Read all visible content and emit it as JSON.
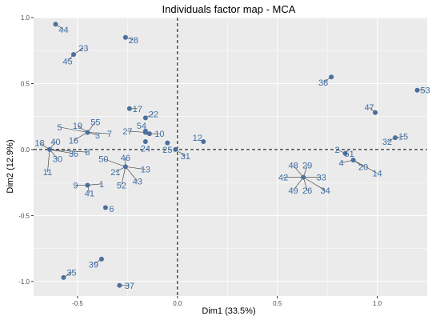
{
  "chart_data": {
    "type": "scatter",
    "title": "Individuals factor map - MCA",
    "xlabel": "Dim1 (33.5%)",
    "ylabel": "Dim2 (12.9%)",
    "xlim": [
      -0.72,
      1.25
    ],
    "ylim": [
      -1.11,
      1.0
    ],
    "x_ticks": [
      -0.5,
      0.0,
      0.5,
      1.0
    ],
    "x_tick_labels": [
      "-0.5",
      "0.0",
      "0.5",
      "1.0"
    ],
    "y_ticks": [
      -1.0,
      -0.5,
      0.0,
      0.5,
      1.0
    ],
    "y_tick_labels": [
      "-1.0",
      "-0.5",
      "0.0",
      "0.5",
      "1.0"
    ],
    "grid": true,
    "reference_lines": {
      "x": 0,
      "y": 0,
      "style": "dashed"
    },
    "point_color": "#4b6f9b",
    "label_color": "#3f6fa6",
    "leader_color": "#333333",
    "points": [
      {
        "x": -0.61,
        "y": 0.95,
        "label": "44",
        "lx": -0.57,
        "ly": 0.91
      },
      {
        "x": -0.26,
        "y": 0.85,
        "label": "28",
        "lx": -0.22,
        "ly": 0.83
      },
      {
        "x": -0.52,
        "y": 0.72,
        "label": "23",
        "lx": -0.47,
        "ly": 0.77
      },
      {
        "x": -0.52,
        "y": 0.72,
        "label": "45",
        "lx": -0.55,
        "ly": 0.67
      },
      {
        "x": 0.77,
        "y": 0.55,
        "label": "38",
        "lx": 0.73,
        "ly": 0.51
      },
      {
        "x": 1.2,
        "y": 0.45,
        "label": "53",
        "lx": 1.24,
        "ly": 0.45
      },
      {
        "x": 0.99,
        "y": 0.28,
        "label": "47",
        "lx": 0.96,
        "ly": 0.32
      },
      {
        "x": -0.24,
        "y": 0.31,
        "label": "17",
        "lx": -0.2,
        "ly": 0.31
      },
      {
        "x": -0.16,
        "y": 0.24,
        "label": "22",
        "lx": -0.12,
        "ly": 0.27
      },
      {
        "x": 1.09,
        "y": 0.09,
        "label": "15",
        "lx": 1.13,
        "ly": 0.1
      },
      {
        "x": 1.09,
        "y": 0.09,
        "label": "32",
        "lx": 1.05,
        "ly": 0.06
      },
      {
        "x": -0.16,
        "y": 0.14,
        "label": "54",
        "lx": -0.18,
        "ly": 0.18
      },
      {
        "x": -0.16,
        "y": 0.13,
        "label": "27",
        "lx": -0.25,
        "ly": 0.14
      },
      {
        "x": -0.14,
        "y": 0.12,
        "label": "10",
        "lx": -0.09,
        "ly": 0.12
      },
      {
        "x": 0.13,
        "y": 0.06,
        "label": "12",
        "lx": 0.1,
        "ly": 0.09
      },
      {
        "x": -0.16,
        "y": 0.06,
        "label": "24",
        "lx": -0.16,
        "ly": 0.01
      },
      {
        "x": -0.05,
        "y": 0.05,
        "label": "25",
        "lx": -0.05,
        "ly": 0.0
      },
      {
        "x": -0.01,
        "y": 0.0,
        "label": "31",
        "lx": 0.04,
        "ly": -0.05
      },
      {
        "x": -0.45,
        "y": 0.13,
        "label": "55",
        "lx": -0.41,
        "ly": 0.21
      },
      {
        "x": -0.45,
        "y": 0.13,
        "label": "19",
        "lx": -0.5,
        "ly": 0.18
      },
      {
        "x": -0.45,
        "y": 0.13,
        "label": "5",
        "lx": -0.59,
        "ly": 0.17
      },
      {
        "x": -0.45,
        "y": 0.13,
        "label": "3",
        "lx": -0.4,
        "ly": 0.11
      },
      {
        "x": -0.45,
        "y": 0.13,
        "label": "7",
        "lx": -0.34,
        "ly": 0.12
      },
      {
        "x": -0.45,
        "y": 0.13,
        "label": "16",
        "lx": -0.52,
        "ly": 0.07
      },
      {
        "x": -0.64,
        "y": 0.0,
        "label": "18",
        "lx": -0.69,
        "ly": 0.05
      },
      {
        "x": -0.64,
        "y": 0.0,
        "label": "40",
        "lx": -0.61,
        "ly": 0.06
      },
      {
        "x": -0.64,
        "y": 0.0,
        "label": "36",
        "lx": -0.52,
        "ly": -0.03
      },
      {
        "x": -0.64,
        "y": 0.0,
        "label": "8",
        "lx": -0.45,
        "ly": -0.02
      },
      {
        "x": -0.64,
        "y": 0.0,
        "label": "30",
        "lx": -0.6,
        "ly": -0.07
      },
      {
        "x": -0.64,
        "y": 0.0,
        "label": "11",
        "lx": -0.65,
        "ly": -0.17
      },
      {
        "x": 0.84,
        "y": -0.03,
        "label": "2",
        "lx": 0.8,
        "ly": 0.0
      },
      {
        "x": 0.84,
        "y": -0.03,
        "label": "51",
        "lx": 0.86,
        "ly": -0.03
      },
      {
        "x": 0.88,
        "y": -0.08,
        "label": "4",
        "lx": 0.82,
        "ly": -0.1
      },
      {
        "x": 0.88,
        "y": -0.08,
        "label": "20",
        "lx": 0.93,
        "ly": -0.13
      },
      {
        "x": 0.88,
        "y": -0.08,
        "label": "14",
        "lx": 1.0,
        "ly": -0.18
      },
      {
        "x": -0.26,
        "y": -0.13,
        "label": "46",
        "lx": -0.26,
        "ly": -0.06
      },
      {
        "x": -0.26,
        "y": -0.13,
        "label": "50",
        "lx": -0.37,
        "ly": -0.07
      },
      {
        "x": -0.26,
        "y": -0.13,
        "label": "21",
        "lx": -0.31,
        "ly": -0.17
      },
      {
        "x": -0.26,
        "y": -0.13,
        "label": "13",
        "lx": -0.16,
        "ly": -0.15
      },
      {
        "x": -0.26,
        "y": -0.13,
        "label": "43",
        "lx": -0.2,
        "ly": -0.24
      },
      {
        "x": -0.26,
        "y": -0.13,
        "label": "52",
        "lx": -0.28,
        "ly": -0.27
      },
      {
        "x": 0.63,
        "y": -0.21,
        "label": "48",
        "lx": 0.58,
        "ly": -0.12
      },
      {
        "x": 0.63,
        "y": -0.21,
        "label": "29",
        "lx": 0.65,
        "ly": -0.12
      },
      {
        "x": 0.63,
        "y": -0.21,
        "label": "42",
        "lx": 0.53,
        "ly": -0.21
      },
      {
        "x": 0.63,
        "y": -0.21,
        "label": "33",
        "lx": 0.72,
        "ly": -0.21
      },
      {
        "x": 0.63,
        "y": -0.21,
        "label": "49",
        "lx": 0.58,
        "ly": -0.31
      },
      {
        "x": 0.63,
        "y": -0.21,
        "label": "26",
        "lx": 0.65,
        "ly": -0.31
      },
      {
        "x": 0.63,
        "y": -0.21,
        "label": "34",
        "lx": 0.74,
        "ly": -0.31
      },
      {
        "x": -0.45,
        "y": -0.27,
        "label": "9",
        "lx": -0.51,
        "ly": -0.27
      },
      {
        "x": -0.45,
        "y": -0.27,
        "label": "1",
        "lx": -0.38,
        "ly": -0.26
      },
      {
        "x": -0.45,
        "y": -0.27,
        "label": "41",
        "lx": -0.44,
        "ly": -0.33
      },
      {
        "x": -0.36,
        "y": -0.44,
        "label": "6",
        "lx": -0.33,
        "ly": -0.45
      },
      {
        "x": -0.38,
        "y": -0.83,
        "label": "39",
        "lx": -0.42,
        "ly": -0.87
      },
      {
        "x": -0.57,
        "y": -0.97,
        "label": "35",
        "lx": -0.53,
        "ly": -0.93
      },
      {
        "x": -0.29,
        "y": -1.03,
        "label": "37",
        "lx": -0.24,
        "ly": -1.03
      }
    ]
  }
}
